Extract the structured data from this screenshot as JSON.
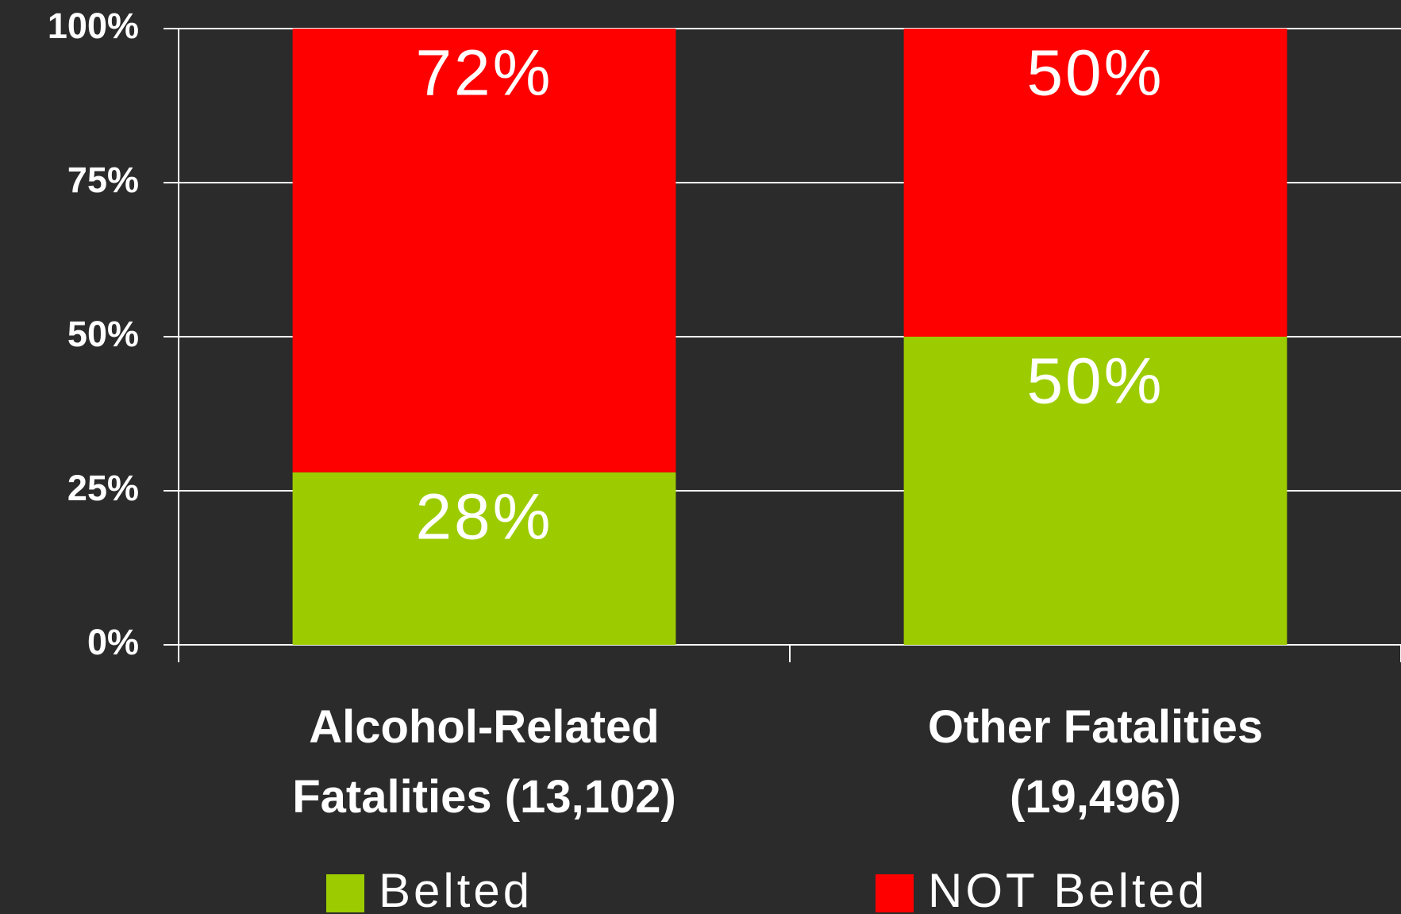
{
  "chart_data": {
    "type": "stacked_bar",
    "categories": [
      "Alcohol-Related Fatalities (13,102)",
      "Other Fatalities (19,496)"
    ],
    "series": [
      {
        "name": "Belted",
        "color": "#9ccc00",
        "values": [
          28,
          50
        ],
        "value_labels": [
          "28%",
          "50%"
        ]
      },
      {
        "name": "NOT Belted",
        "color": "#ff0000",
        "values": [
          72,
          50
        ],
        "value_labels": [
          "72%",
          "50%"
        ]
      }
    ],
    "ylim": [
      0,
      100
    ],
    "yticks": [
      {
        "value": 0,
        "label": "0%"
      },
      {
        "value": 25,
        "label": "25%"
      },
      {
        "value": 50,
        "label": "50%"
      },
      {
        "value": 75,
        "label": "75%"
      },
      {
        "value": 100,
        "label": "100%"
      }
    ],
    "grid": true,
    "legend": "bottom"
  }
}
